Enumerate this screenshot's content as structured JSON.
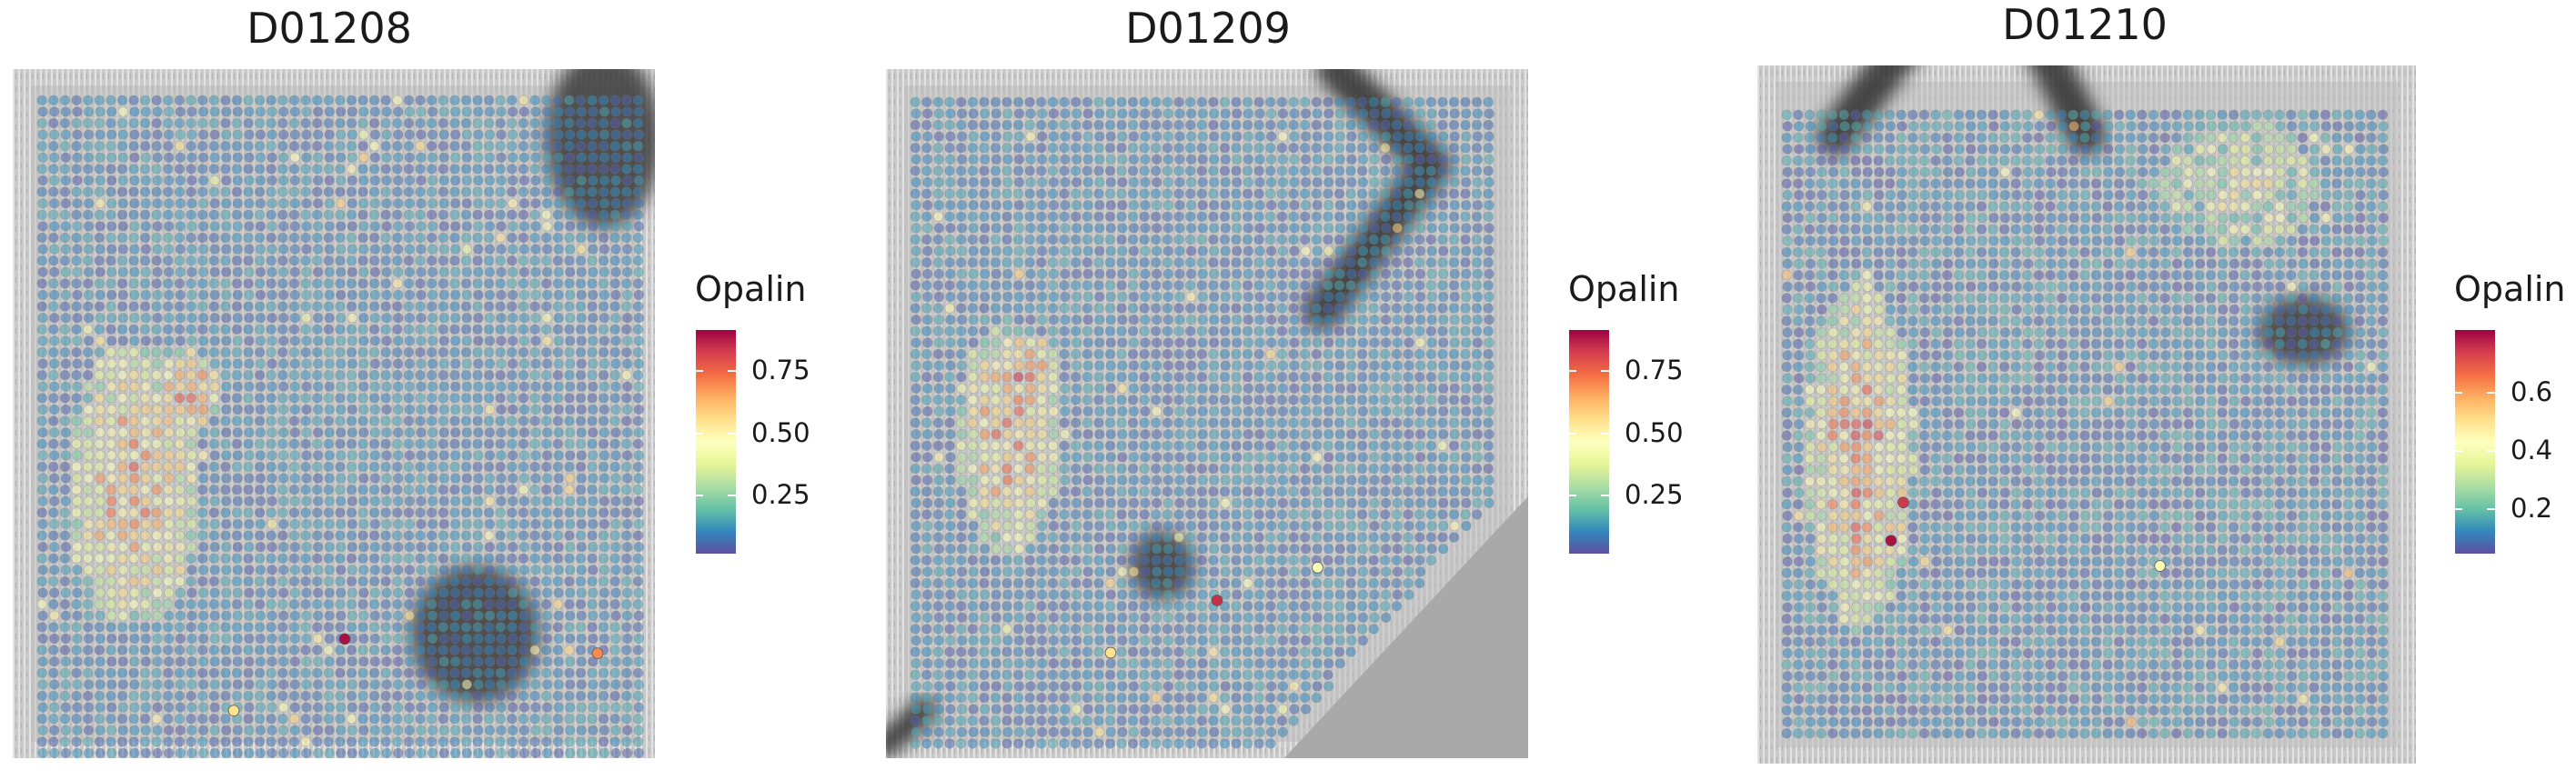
{
  "chart_data": [
    {
      "type": "spatial-scatter",
      "title": "D01208",
      "legend": {
        "title": "Opalin",
        "ticks": [
          0.25,
          0.5,
          0.75
        ],
        "tick_labels": [
          "0.25",
          "0.50",
          "0.75"
        ],
        "range": [
          0.02,
          0.92
        ]
      },
      "colormap": [
        "#5e4fa2",
        "#3288bd",
        "#66c2a5",
        "#abdda4",
        "#e6f598",
        "#ffffbf",
        "#fee08b",
        "#fdae61",
        "#f46d43",
        "#d53e4f",
        "#9e0142"
      ],
      "background_value": 0.1,
      "hotspots": [
        {
          "cx": 0.16,
          "cy": 0.55,
          "rx": 0.11,
          "ry": 0.2,
          "value": 0.62
        },
        {
          "cx": 0.25,
          "cy": 0.42,
          "rx": 0.05,
          "ry": 0.06,
          "value": 0.75
        }
      ],
      "outliers": [
        {
          "x": 0.5,
          "y": 0.76,
          "value": 0.9
        },
        {
          "x": 0.91,
          "y": 0.78,
          "value": 0.7
        },
        {
          "x": 0.32,
          "y": 0.86,
          "value": 0.55
        }
      ]
    },
    {
      "type": "spatial-scatter",
      "title": "D01209",
      "legend": {
        "title": "Opalin",
        "ticks": [
          0.25,
          0.5,
          0.75
        ],
        "tick_labels": [
          "0.25",
          "0.50",
          "0.75"
        ],
        "range": [
          0.02,
          0.92
        ]
      },
      "colormap": [
        "#5e4fa2",
        "#3288bd",
        "#66c2a5",
        "#abdda4",
        "#e6f598",
        "#ffffbf",
        "#fee08b",
        "#fdae61",
        "#f46d43",
        "#d53e4f",
        "#9e0142"
      ],
      "background_value": 0.1,
      "hotspots": [
        {
          "cx": 0.17,
          "cy": 0.52,
          "rx": 0.09,
          "ry": 0.18,
          "value": 0.62
        },
        {
          "cx": 0.2,
          "cy": 0.42,
          "rx": 0.05,
          "ry": 0.06,
          "value": 0.74
        }
      ],
      "outliers": [
        {
          "x": 0.52,
          "y": 0.77,
          "value": 0.85
        },
        {
          "x": 0.34,
          "y": 0.85,
          "value": 0.55
        },
        {
          "x": 0.69,
          "y": 0.72,
          "value": 0.45
        }
      ]
    },
    {
      "type": "spatial-scatter",
      "title": "D01210",
      "legend": {
        "title": "Opalin",
        "ticks": [
          0.2,
          0.4,
          0.6
        ],
        "tick_labels": [
          "0.2",
          "0.4",
          "0.6"
        ],
        "range": [
          0.05,
          0.82
        ]
      },
      "colormap": [
        "#5e4fa2",
        "#3288bd",
        "#66c2a5",
        "#abdda4",
        "#e6f598",
        "#ffffbf",
        "#fee08b",
        "#fdae61",
        "#f46d43",
        "#d53e4f",
        "#9e0142"
      ],
      "background_value": 0.12,
      "hotspots": [
        {
          "cx": 0.13,
          "cy": 0.55,
          "rx": 0.09,
          "ry": 0.28,
          "value": 0.6
        },
        {
          "cx": 0.75,
          "cy": 0.12,
          "rx": 0.14,
          "ry": 0.1,
          "value": 0.38
        }
      ],
      "outliers": [
        {
          "x": 0.18,
          "y": 0.68,
          "value": 0.8
        },
        {
          "x": 0.2,
          "y": 0.62,
          "value": 0.75
        },
        {
          "x": 0.62,
          "y": 0.72,
          "value": 0.45
        }
      ]
    }
  ]
}
